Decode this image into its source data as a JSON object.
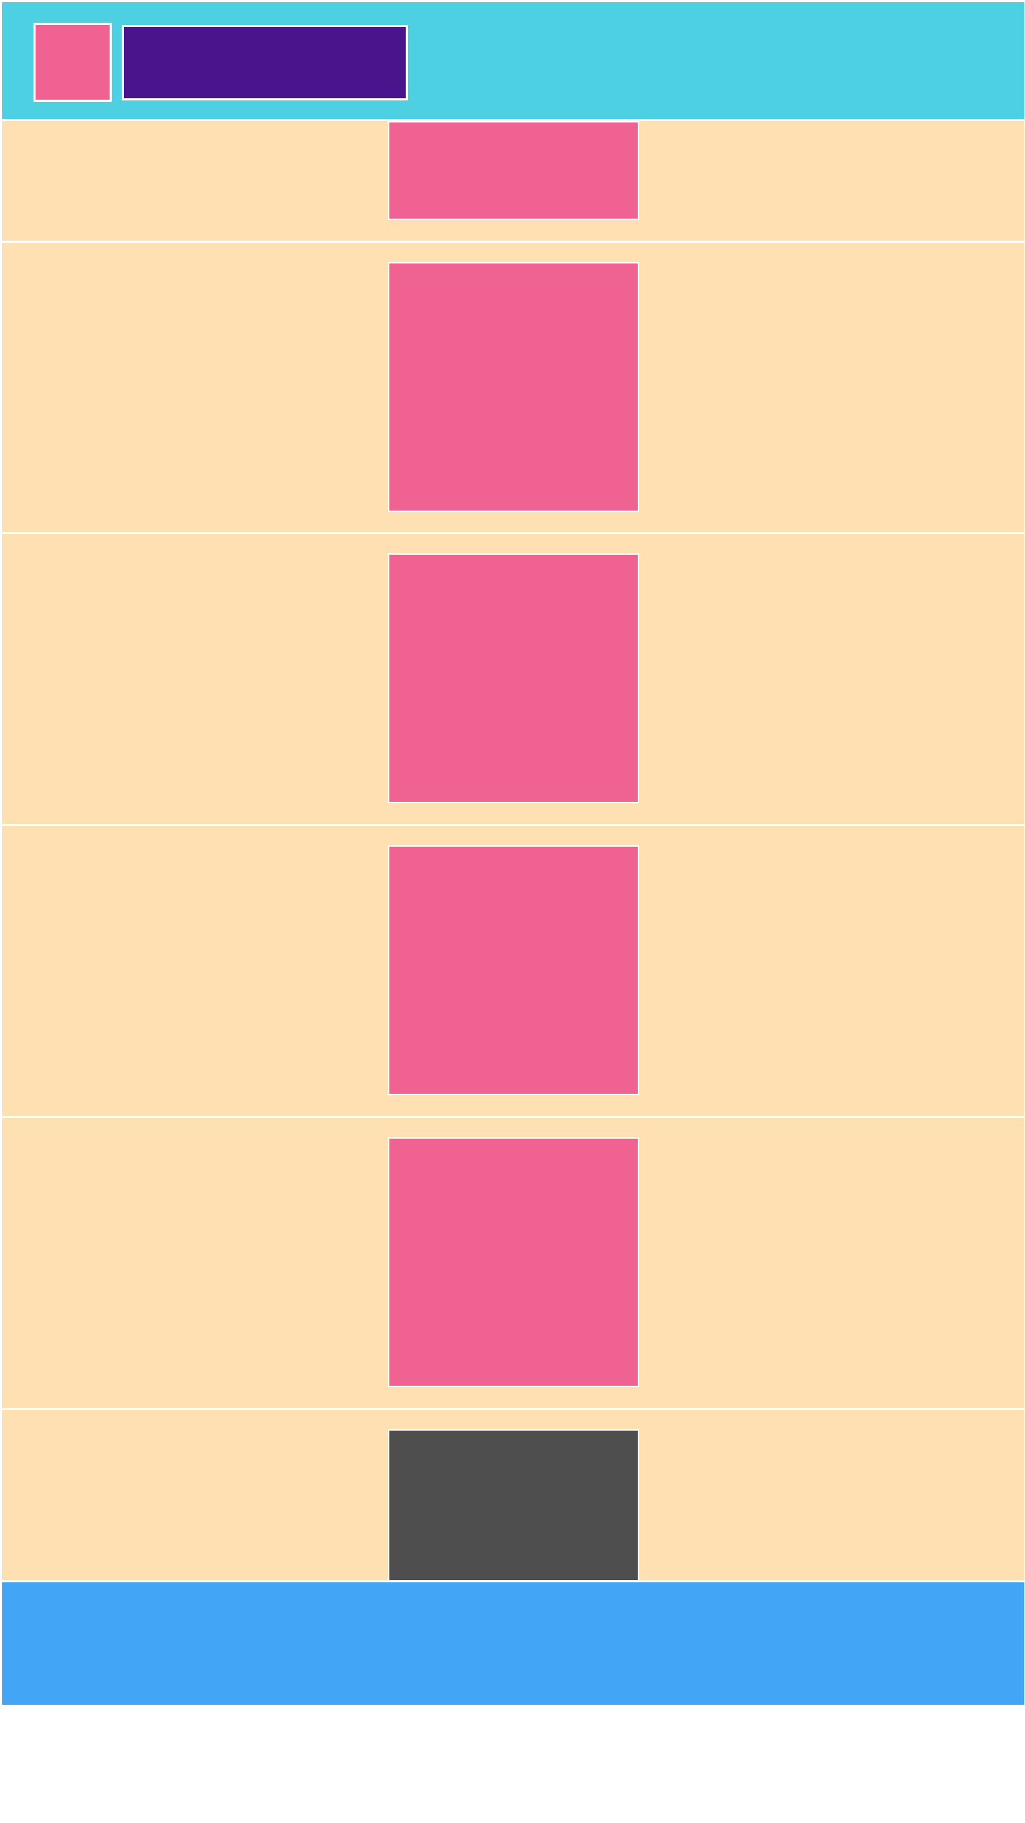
{
  "app": {
    "title": ""
  },
  "header": {
    "logo_icon": "logo-icon",
    "title_text": ""
  },
  "sections": [
    {
      "tile_text": "",
      "tile_color": "#f06292"
    },
    {
      "tile_text": "",
      "tile_color": "#f06292"
    },
    {
      "tile_text": "",
      "tile_color": "#f06292"
    },
    {
      "tile_text": "",
      "tile_color": "#f06292"
    },
    {
      "tile_text": "",
      "tile_color": "#f06292"
    },
    {
      "tile_text": "",
      "tile_color": "#4e4e4e"
    }
  ],
  "footer": {
    "text": ""
  },
  "colors": {
    "header": "#4dd0e1",
    "logo": "#f06292",
    "title_bar": "#4a148c",
    "section": "#ffe0b2",
    "tile": "#f06292",
    "tile_dark": "#4e4e4e",
    "footer": "#42a5f5",
    "divider": "#ffffff"
  }
}
